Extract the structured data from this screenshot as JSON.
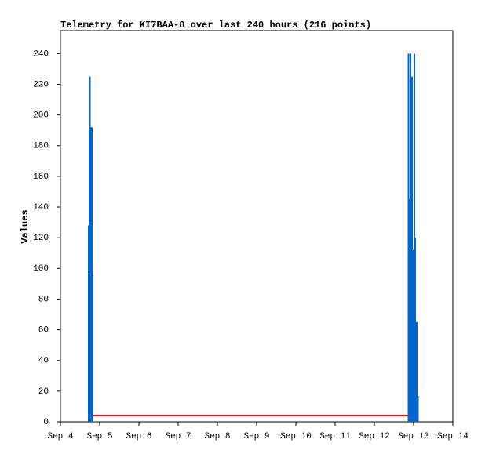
{
  "chart_data": {
    "type": "bar",
    "title": "Telemetry for KI7BAA-8 over last 240 hours (216 points)",
    "y_label": "Values",
    "xlim": [
      4,
      14
    ],
    "xticks": [
      {
        "value": 4,
        "label": "Sep 4"
      },
      {
        "value": 5,
        "label": "Sep 5"
      },
      {
        "value": 6,
        "label": "Sep 6"
      },
      {
        "value": 7,
        "label": "Sep 7"
      },
      {
        "value": 8,
        "label": "Sep 8"
      },
      {
        "value": 9,
        "label": "Sep 9"
      },
      {
        "value": 10,
        "label": "Sep 10"
      },
      {
        "value": 11,
        "label": "Sep 11"
      },
      {
        "value": 12,
        "label": "Sep 12"
      },
      {
        "value": 13,
        "label": "Sep 13"
      },
      {
        "value": 14,
        "label": "Sep 14"
      }
    ],
    "ylim": [
      0,
      255
    ],
    "yticks": [
      0,
      20,
      40,
      60,
      80,
      100,
      120,
      140,
      160,
      180,
      200,
      220,
      240
    ],
    "series": [
      {
        "type": "bar",
        "color": "#0066cc",
        "x": [
          4.72,
          4.75,
          4.78,
          4.8,
          4.82,
          12.87,
          12.89,
          12.92,
          12.94,
          12.96,
          12.98,
          13.02,
          13.04,
          13.08,
          13.11
        ],
        "values": [
          128,
          225,
          192,
          192,
          97,
          240,
          145,
          240,
          160,
          225,
          112,
          240,
          120,
          65,
          17
        ]
      },
      {
        "type": "line",
        "color": "#cc0000",
        "x": [
          4.82,
          12.87
        ],
        "values": [
          4,
          4
        ]
      }
    ]
  }
}
